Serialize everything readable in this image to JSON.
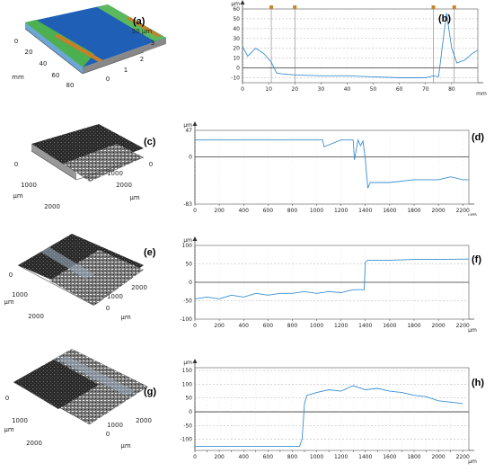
{
  "figure": {
    "panels": [
      {
        "id": "a",
        "label": "(a)",
        "kind": "surface",
        "axis_labels": [
          "0",
          "20",
          "40",
          "60",
          "80",
          "mm",
          "50 µm",
          "3",
          "2",
          "1",
          "0"
        ]
      },
      {
        "id": "b",
        "label": "(b)",
        "kind": "profile",
        "y_unit": "µm",
        "x_unit": "mm",
        "y_ticks": [
          60,
          50,
          40,
          30,
          20,
          10,
          0,
          -10
        ],
        "x_ticks": [
          0,
          10,
          20,
          30,
          40,
          50,
          60,
          70,
          80
        ]
      },
      {
        "id": "c",
        "label": "(c)",
        "kind": "surface",
        "axis_labels": [
          "0",
          "1000",
          "µm",
          "2000",
          "1000",
          "0",
          "2000",
          "µm"
        ]
      },
      {
        "id": "d",
        "label": "(d)",
        "kind": "profile",
        "y_unit": "µm",
        "y_ticks": [
          47,
          0,
          -83
        ],
        "x_ticks": [
          0,
          200,
          400,
          600,
          800,
          1000,
          1200,
          1400,
          1600,
          1800,
          2000,
          2200
        ],
        "x_unit": "µm"
      },
      {
        "id": "e",
        "label": "(e)",
        "kind": "surface",
        "axis_labels": [
          "0",
          "1000",
          "µm",
          "2000",
          "0",
          "1000",
          "2000",
          "µm"
        ]
      },
      {
        "id": "f",
        "label": "(f)",
        "kind": "profile",
        "y_unit": "µm",
        "y_ticks": [
          100,
          50,
          0,
          -50,
          -100
        ],
        "x_ticks": [
          0,
          200,
          400,
          600,
          800,
          1000,
          1200,
          1400,
          1600,
          1800,
          2000,
          2200
        ],
        "x_unit": "µm"
      },
      {
        "id": "g",
        "label": "(g)",
        "kind": "surface",
        "axis_labels": [
          "0",
          "1000",
          "µm",
          "2000",
          "0",
          "1000",
          "2000",
          "µm"
        ]
      },
      {
        "id": "h",
        "label": "(h)",
        "kind": "profile",
        "y_unit": "µm",
        "y_ticks": [
          150,
          100,
          50,
          0,
          -50,
          -100
        ],
        "x_ticks": [
          0,
          100,
          200,
          300,
          400,
          500,
          600,
          700,
          800,
          900,
          1000,
          1100,
          1200,
          1300,
          1400,
          1500,
          1600,
          1700,
          1800,
          1900,
          2000,
          2100,
          2200
        ],
        "x_tick_labels": [
          0,
          200,
          400,
          600,
          800,
          1000,
          1200,
          1400,
          1600,
          1800,
          2000,
          2200
        ],
        "x_unit": "µm"
      }
    ]
  },
  "chart_data": [
    {
      "type": "line",
      "panel": "b",
      "x": [
        0,
        2,
        5,
        8,
        11,
        13,
        15,
        20,
        30,
        40,
        50,
        60,
        70,
        73,
        75,
        78,
        80,
        82,
        85,
        88,
        90
      ],
      "y": [
        22,
        12,
        20,
        15,
        6,
        -5,
        -6,
        -7,
        -8,
        -8,
        -9,
        -10,
        -10,
        -8,
        -9,
        56,
        20,
        5,
        8,
        15,
        18
      ],
      "xlim": [
        0,
        90
      ],
      "ylim": [
        -15,
        60
      ],
      "markers_x": [
        11,
        20,
        73,
        81
      ]
    },
    {
      "type": "line",
      "panel": "d",
      "x": [
        0,
        1050,
        1060,
        1200,
        1300,
        1310,
        1340,
        1360,
        1380,
        1400,
        1420,
        1440,
        1600,
        1800,
        2000,
        2100,
        2200,
        2250
      ],
      "y": [
        30,
        30,
        18,
        30,
        30,
        -5,
        30,
        20,
        28,
        -5,
        -55,
        -45,
        -45,
        -40,
        -40,
        -35,
        -40,
        -40
      ],
      "xlim": [
        0,
        2250
      ],
      "ylim": [
        -83,
        47
      ]
    },
    {
      "type": "line",
      "panel": "f",
      "x": [
        0,
        100,
        200,
        300,
        400,
        500,
        600,
        700,
        800,
        900,
        1000,
        1100,
        1200,
        1300,
        1390,
        1400,
        1420,
        1600,
        1800,
        2000,
        2200,
        2250
      ],
      "y": [
        -45,
        -40,
        -45,
        -35,
        -40,
        -30,
        -35,
        -30,
        -30,
        -25,
        -30,
        -25,
        -28,
        -20,
        -20,
        55,
        60,
        60,
        62,
        62,
        63,
        63
      ],
      "xlim": [
        0,
        2250
      ],
      "ylim": [
        -100,
        100
      ]
    },
    {
      "type": "line",
      "panel": "h",
      "x": [
        0,
        200,
        400,
        600,
        800,
        860,
        880,
        900,
        920,
        1000,
        1100,
        1200,
        1300,
        1400,
        1500,
        1600,
        1700,
        1800,
        1900,
        2000,
        2100,
        2200
      ],
      "y": [
        -125,
        -125,
        -125,
        -125,
        -125,
        -125,
        -100,
        30,
        60,
        70,
        80,
        75,
        95,
        80,
        85,
        75,
        70,
        60,
        55,
        40,
        35,
        30
      ],
      "xlim": [
        0,
        2250
      ],
      "ylim": [
        -140,
        160
      ]
    }
  ]
}
